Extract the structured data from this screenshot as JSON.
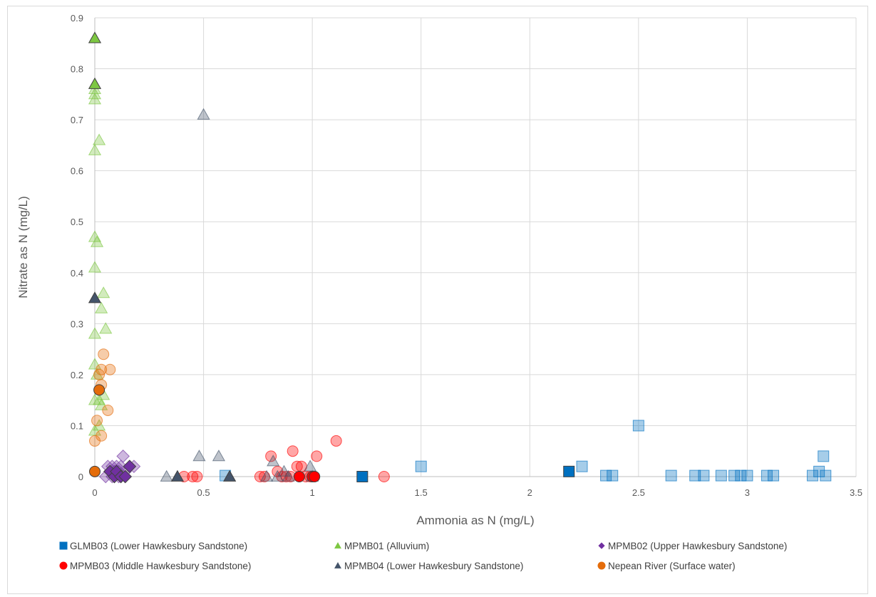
{
  "chart_data": {
    "type": "scatter",
    "title": "",
    "xlabel": "Ammonia as N (mg/L)",
    "ylabel": "Nitrate as N (mg/L)",
    "xlim": [
      0,
      3.5
    ],
    "ylim": [
      0,
      0.9
    ],
    "x_ticks": [
      "0",
      "0.5",
      "1",
      "1.5",
      "2",
      "2.5",
      "3",
      "3.5"
    ],
    "y_ticks": [
      "0",
      "0.1",
      "0.2",
      "0.3",
      "0.4",
      "0.5",
      "0.6",
      "0.7",
      "0.8",
      "0.9"
    ],
    "grid": true,
    "legend_position": "bottom",
    "series": [
      {
        "name": "GLMB03 (Lower Hawkesbury Sandstone)",
        "marker": "square",
        "color": "#0070c0",
        "points": [
          [
            1.23,
            0
          ],
          [
            2.18,
            0.01
          ]
        ],
        "faded_points": [
          [
            0.6,
            0.002
          ],
          [
            1.5,
            0.02
          ],
          [
            2.24,
            0.02
          ],
          [
            2.35,
            0.002
          ],
          [
            2.38,
            0.002
          ],
          [
            2.5,
            0.1
          ],
          [
            2.65,
            0.002
          ],
          [
            2.76,
            0.002
          ],
          [
            2.8,
            0.002
          ],
          [
            2.88,
            0.002
          ],
          [
            2.94,
            0.002
          ],
          [
            2.97,
            0.002
          ],
          [
            3.0,
            0.002
          ],
          [
            3.09,
            0.002
          ],
          [
            3.12,
            0.002
          ],
          [
            3.3,
            0.002
          ],
          [
            3.33,
            0.01
          ],
          [
            3.35,
            0.04
          ],
          [
            3.36,
            0.002
          ]
        ]
      },
      {
        "name": "MPMB01 (Alluvium)",
        "marker": "triangle",
        "color": "#7dc742",
        "points": [
          [
            0,
            0.86
          ],
          [
            0,
            0.77
          ]
        ],
        "faded_points": [
          [
            0,
            0.76
          ],
          [
            0,
            0.75
          ],
          [
            0,
            0.74
          ],
          [
            0.02,
            0.66
          ],
          [
            0,
            0.64
          ],
          [
            0,
            0.47
          ],
          [
            0.01,
            0.46
          ],
          [
            0,
            0.41
          ],
          [
            0.04,
            0.36
          ],
          [
            0.03,
            0.33
          ],
          [
            0,
            0.28
          ],
          [
            0.05,
            0.29
          ],
          [
            0,
            0.22
          ],
          [
            0.01,
            0.2
          ],
          [
            0,
            0.15
          ],
          [
            0.04,
            0.16
          ],
          [
            0.02,
            0.15
          ],
          [
            0.03,
            0.14
          ],
          [
            0,
            0.09
          ],
          [
            0.02,
            0.1
          ]
        ]
      },
      {
        "name": "MPMB02 (Upper Hawkesbury Sandstone)",
        "marker": "diamond",
        "color": "#7030a0",
        "points": [
          [
            0.07,
            0.01
          ],
          [
            0.09,
            0.0
          ],
          [
            0.1,
            0.01
          ],
          [
            0.12,
            0.0
          ],
          [
            0.14,
            0.0
          ],
          [
            0.16,
            0.02
          ]
        ],
        "faded_points": [
          [
            0.05,
            0.0
          ],
          [
            0.06,
            0.02
          ],
          [
            0.08,
            0.02
          ],
          [
            0.09,
            0.01
          ],
          [
            0.1,
            0.02
          ],
          [
            0.11,
            0.01
          ],
          [
            0.12,
            0.02
          ],
          [
            0.13,
            0.04
          ],
          [
            0.14,
            0.01
          ],
          [
            0.16,
            0.02
          ],
          [
            0.18,
            0.02
          ],
          [
            0.08,
            0.0
          ],
          [
            0.11,
            0.0
          ]
        ]
      },
      {
        "name": "MPMB03 (Middle Hawkesbury Sandstone)",
        "marker": "circle",
        "color": "#ff0000",
        "points": [
          [
            0.94,
            0
          ],
          [
            1.0,
            0
          ],
          [
            1.01,
            0
          ]
        ],
        "faded_points": [
          [
            0.41,
            0
          ],
          [
            0.45,
            0
          ],
          [
            0.47,
            0
          ],
          [
            0.76,
            0
          ],
          [
            0.78,
            0
          ],
          [
            0.81,
            0.04
          ],
          [
            0.84,
            0.01
          ],
          [
            0.86,
            0.0
          ],
          [
            0.88,
            0.0
          ],
          [
            0.9,
            0.0
          ],
          [
            0.91,
            0.05
          ],
          [
            0.93,
            0.02
          ],
          [
            0.95,
            0.02
          ],
          [
            0.97,
            0.0
          ],
          [
            0.99,
            0.0
          ],
          [
            1.02,
            0.04
          ],
          [
            1.11,
            0.07
          ],
          [
            1.33,
            0.0
          ]
        ]
      },
      {
        "name": "MPMB04 (Lower Hawkesbury Sandstone)",
        "marker": "triangle",
        "color": "#44546a",
        "points": [
          [
            0,
            0.35
          ],
          [
            0.38,
            0
          ],
          [
            0.62,
            0
          ]
        ],
        "faded_points": [
          [
            0.33,
            0
          ],
          [
            0.48,
            0.04
          ],
          [
            0.5,
            0.71
          ],
          [
            0.57,
            0.04
          ],
          [
            0.79,
            0
          ],
          [
            0.82,
            0.03
          ],
          [
            0.84,
            0
          ],
          [
            0.87,
            0.01
          ],
          [
            0.89,
            0
          ],
          [
            0.99,
            0.02
          ],
          [
            1.0,
            0
          ]
        ]
      },
      {
        "name": "Nepean River (Surface water)",
        "marker": "circle",
        "color": "#e46c0a",
        "points": [
          [
            0.02,
            0.17
          ],
          [
            0,
            0.01
          ]
        ],
        "faded_points": [
          [
            0.04,
            0.24
          ],
          [
            0.03,
            0.21
          ],
          [
            0.07,
            0.21
          ],
          [
            0.02,
            0.2
          ],
          [
            0.03,
            0.18
          ],
          [
            0.06,
            0.13
          ],
          [
            0.01,
            0.11
          ],
          [
            0.03,
            0.08
          ],
          [
            0,
            0.07
          ]
        ]
      }
    ]
  }
}
